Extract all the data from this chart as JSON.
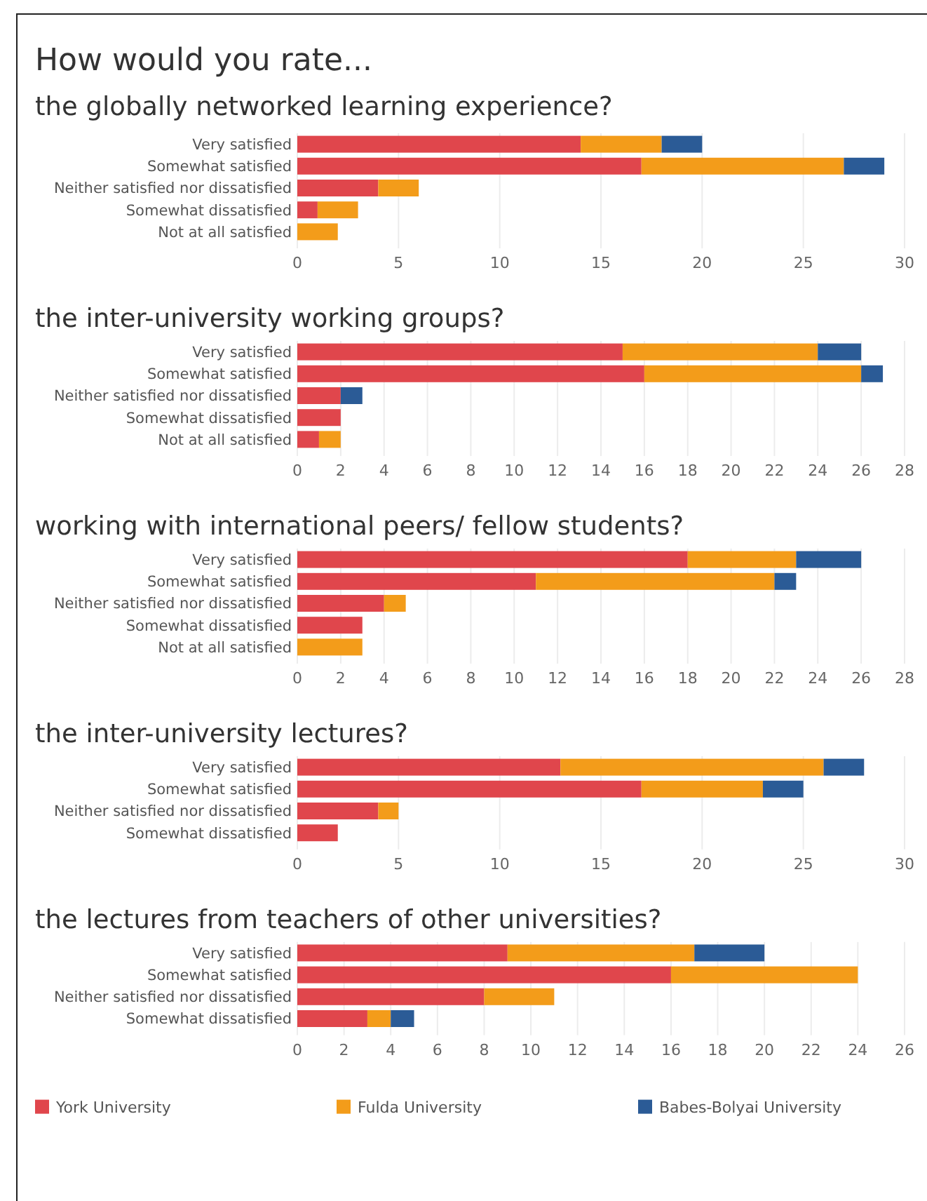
{
  "chart_data": [
    {
      "type": "bar",
      "orientation": "horizontal",
      "stacked": true,
      "title": "How would you rate...",
      "subtitle": "the globally networked learning experience?",
      "categories": [
        "Very satisfied",
        "Somewhat satisfied",
        "Neither satisfied nor dissatisfied",
        "Somewhat dissatisfied",
        "Not at all satisfied"
      ],
      "xlim": [
        0,
        30
      ],
      "xticks": [
        0,
        5,
        10,
        15,
        20,
        25,
        30
      ],
      "grid": "x",
      "legend": false,
      "series": [
        {
          "color": "#e0464c",
          "values": [
            14,
            17,
            4,
            1,
            null
          ]
        },
        {
          "color": "#f39c1a",
          "values": [
            4,
            10,
            2,
            2,
            2
          ]
        },
        {
          "color": "#2b5b96",
          "values": [
            2,
            2,
            null,
            null,
            null
          ]
        }
      ]
    },
    {
      "type": "bar",
      "orientation": "horizontal",
      "stacked": true,
      "title": "the inter-university working groups?",
      "categories": [
        "Very satisfied",
        "Somewhat satisfied",
        "Neither satisfied nor dissatisfied",
        "Somewhat dissatisfied",
        "Not at all satisfied"
      ],
      "xlim": [
        0,
        28
      ],
      "xticks": [
        0,
        2,
        4,
        6,
        8,
        10,
        12,
        14,
        16,
        18,
        20,
        22,
        24,
        26,
        28
      ],
      "grid": "x",
      "legend": false,
      "series": [
        {
          "color": "#e0464c",
          "values": [
            15,
            16,
            2,
            2,
            1
          ]
        },
        {
          "color": "#f39c1a",
          "values": [
            9,
            10,
            null,
            null,
            1
          ]
        },
        {
          "color": "#2b5b96",
          "values": [
            2,
            1,
            1,
            null,
            null
          ]
        }
      ]
    },
    {
      "type": "bar",
      "orientation": "horizontal",
      "stacked": true,
      "title": "working with international peers/ fellow students?",
      "categories": [
        "Very satisfied",
        "Somewhat satisfied",
        "Neither satisfied nor dissatisfied",
        "Somewhat dissatisfied",
        "Not at all satisfied"
      ],
      "xlim": [
        0,
        28
      ],
      "xticks": [
        0,
        2,
        4,
        6,
        8,
        10,
        12,
        14,
        16,
        18,
        20,
        22,
        24,
        26,
        28
      ],
      "grid": "x",
      "legend": false,
      "series": [
        {
          "color": "#e0464c",
          "values": [
            18,
            11,
            4,
            3,
            null
          ]
        },
        {
          "color": "#f39c1a",
          "values": [
            5,
            11,
            1,
            null,
            3
          ]
        },
        {
          "color": "#2b5b96",
          "values": [
            3,
            1,
            null,
            null,
            null
          ]
        }
      ]
    },
    {
      "type": "bar",
      "orientation": "horizontal",
      "stacked": true,
      "title": "the inter-university lectures?",
      "categories": [
        "Very satisfied",
        "Somewhat satisfied",
        "Neither satisfied nor dissatisfied",
        "Somewhat dissatisfied"
      ],
      "xlim": [
        0,
        30
      ],
      "xticks": [
        0,
        5,
        10,
        15,
        20,
        25,
        30
      ],
      "grid": "x",
      "legend": false,
      "series": [
        {
          "color": "#e0464c",
          "values": [
            13,
            17,
            4,
            2
          ]
        },
        {
          "color": "#f39c1a",
          "values": [
            13,
            6,
            1,
            null
          ]
        },
        {
          "color": "#2b5b96",
          "values": [
            2,
            2,
            null,
            null
          ]
        }
      ]
    },
    {
      "type": "bar",
      "orientation": "horizontal",
      "stacked": true,
      "title": "the lectures from teachers of other universities?",
      "categories": [
        "Very satisfied",
        "Somewhat satisfied",
        "Neither satisfied nor dissatisfied",
        "Somewhat dissatisfied"
      ],
      "xlim": [
        0,
        26
      ],
      "xticks": [
        0,
        2,
        4,
        6,
        8,
        10,
        12,
        14,
        16,
        18,
        20,
        22,
        24,
        26
      ],
      "grid": "x",
      "legend": "bottom",
      "series": [
        {
          "name": "York University",
          "color": "#e0464c",
          "values": [
            9,
            16,
            8,
            3
          ]
        },
        {
          "name": "Fulda University",
          "color": "#f39c1a",
          "values": [
            8,
            8,
            3,
            1
          ]
        },
        {
          "name": "Babes-Bolyai University",
          "color": "#2b5b96",
          "values": [
            3,
            null,
            null,
            1
          ]
        }
      ]
    }
  ]
}
